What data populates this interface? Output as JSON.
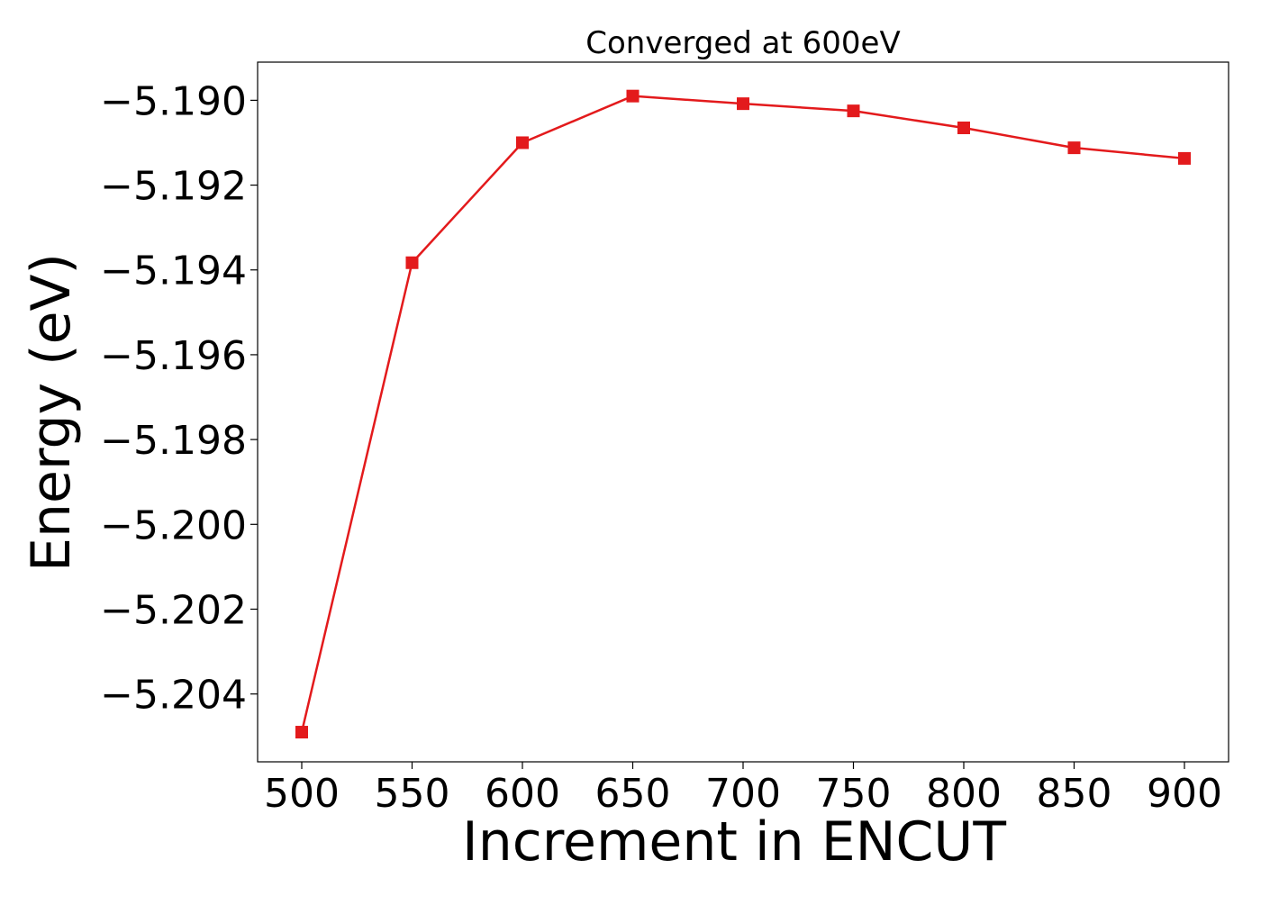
{
  "chart_data": {
    "type": "line",
    "title": "Converged at 600eV",
    "xlabel": "Increment in ENCUT",
    "ylabel": "Energy (eV)",
    "x": [
      500,
      550,
      600,
      650,
      700,
      750,
      800,
      850,
      900
    ],
    "series": [
      {
        "values": [
          -5.2049,
          -5.19383,
          -5.191,
          -5.1899,
          -5.19008,
          -5.19025,
          -5.19065,
          -5.19112,
          -5.19137
        ],
        "color": "#e31a1c",
        "marker": "square"
      }
    ],
    "xticks": [
      500,
      550,
      600,
      650,
      700,
      750,
      800,
      850,
      900
    ],
    "xtick_labels": [
      "500",
      "550",
      "600",
      "650",
      "700",
      "750",
      "800",
      "850",
      "900"
    ],
    "yticks": [
      -5.19,
      -5.192,
      -5.194,
      -5.196,
      -5.198,
      -5.2,
      -5.202,
      -5.204
    ],
    "ytick_labels": [
      "−5.190",
      "−5.192",
      "−5.194",
      "−5.196",
      "−5.198",
      "−5.200",
      "−5.202",
      "−5.204"
    ],
    "xlim": [
      480,
      920
    ],
    "ylim": [
      -5.2056,
      -5.1891
    ],
    "grid": false,
    "legend": "none"
  }
}
